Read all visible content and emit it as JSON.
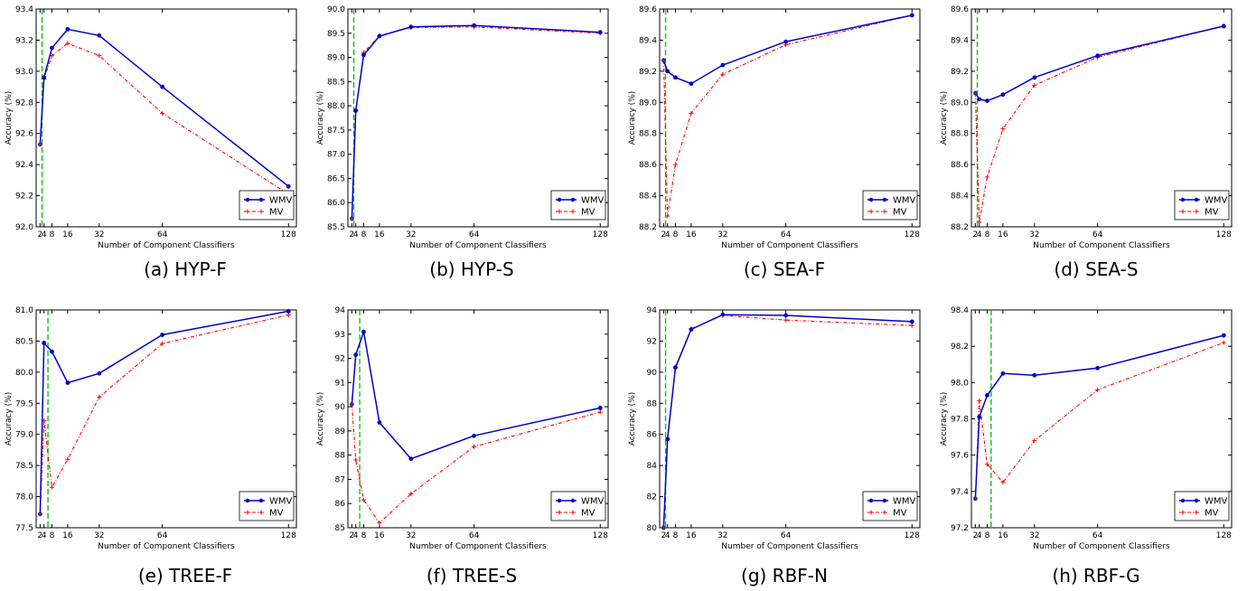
{
  "figure": {
    "legend_entries": [
      "WMV",
      "MV"
    ],
    "series_colors": {
      "WMV": "#0000cc",
      "MV": "#ff0000",
      "marker": "#4b2a8a",
      "threshold": "#00bb00"
    }
  },
  "chart_data": [
    {
      "type": "line",
      "caption": "(a) HYP-F",
      "xlabel": "Number of Component Classifiers",
      "ylabel": "Accuracy (%)",
      "x_ticks": [
        2,
        4,
        8,
        16,
        32,
        64,
        128
      ],
      "x_tick_labels": [
        "2",
        "4",
        "8",
        "16",
        "32",
        "64",
        "128"
      ],
      "xlim": [
        0,
        132
      ],
      "ylim": [
        92.0,
        93.4
      ],
      "y_ticks": [
        92.0,
        92.2,
        92.4,
        92.6,
        92.8,
        93.0,
        93.2,
        93.4
      ],
      "y_tick_labels": [
        "92.0",
        "92.2",
        "92.4",
        "92.6",
        "92.8",
        "93.0",
        "93.2",
        "93.4"
      ],
      "threshold_x": 3,
      "legend_position": "lower-right",
      "x": [
        2,
        4,
        8,
        16,
        32,
        64,
        128
      ],
      "series": [
        {
          "name": "WMV",
          "values": [
            92.53,
            92.96,
            93.15,
            93.27,
            93.23,
            92.9,
            92.26
          ]
        },
        {
          "name": "MV",
          "values": [
            92.53,
            92.95,
            93.1,
            93.18,
            93.1,
            92.73,
            92.21
          ]
        }
      ]
    },
    {
      "type": "line",
      "caption": "(b) HYP-S",
      "xlabel": "Number of Component Classifiers",
      "ylabel": "Accuracy (%)",
      "x_ticks": [
        2,
        4,
        8,
        16,
        32,
        64,
        128
      ],
      "x_tick_labels": [
        "2",
        "4",
        "8",
        "16",
        "32",
        "64",
        "128"
      ],
      "xlim": [
        0,
        132
      ],
      "ylim": [
        85.5,
        90.0
      ],
      "y_ticks": [
        85.5,
        86.0,
        86.5,
        87.0,
        87.5,
        88.0,
        88.5,
        89.0,
        89.5,
        90.0
      ],
      "y_tick_labels": [
        "85.5",
        "86.0",
        "86.5",
        "87.0",
        "87.5",
        "88.0",
        "88.5",
        "89.0",
        "89.5",
        "90.0"
      ],
      "threshold_x": 3,
      "legend_position": "lower-right",
      "x": [
        2,
        4,
        8,
        16,
        32,
        64,
        128
      ],
      "series": [
        {
          "name": "WMV",
          "values": [
            85.67,
            87.9,
            89.05,
            89.44,
            89.63,
            89.66,
            89.52
          ]
        },
        {
          "name": "MV",
          "values": [
            85.67,
            87.9,
            89.1,
            89.45,
            89.62,
            89.63,
            89.5
          ]
        }
      ]
    },
    {
      "type": "line",
      "caption": "(c) SEA-F",
      "xlabel": "Number of Component Classifiers",
      "ylabel": "Accuracy (%)",
      "x_ticks": [
        2,
        4,
        8,
        16,
        32,
        64,
        128
      ],
      "x_tick_labels": [
        "2",
        "4",
        "8",
        "16",
        "32",
        "64",
        "128"
      ],
      "xlim": [
        0,
        132
      ],
      "ylim": [
        88.2,
        89.6
      ],
      "y_ticks": [
        88.2,
        88.4,
        88.6,
        88.8,
        89.0,
        89.2,
        89.4,
        89.6
      ],
      "y_tick_labels": [
        "88.2",
        "88.4",
        "88.6",
        "88.8",
        "89.0",
        "89.2",
        "89.4",
        "89.6"
      ],
      "threshold_x": 3,
      "legend_position": "lower-right",
      "x": [
        2,
        4,
        8,
        16,
        32,
        64,
        128
      ],
      "series": [
        {
          "name": "WMV",
          "values": [
            89.27,
            89.2,
            89.16,
            89.12,
            89.24,
            89.39,
            89.56
          ]
        },
        {
          "name": "MV",
          "values": [
            89.27,
            88.27,
            88.6,
            88.93,
            89.18,
            89.37,
            89.56
          ]
        }
      ]
    },
    {
      "type": "line",
      "caption": "(d) SEA-S",
      "xlabel": "Number of Component Classifiers",
      "ylabel": "Accuracy (%)",
      "x_ticks": [
        2,
        4,
        8,
        16,
        32,
        64,
        128
      ],
      "x_tick_labels": [
        "2",
        "4",
        "8",
        "16",
        "32",
        "64",
        "128"
      ],
      "xlim": [
        0,
        132
      ],
      "ylim": [
        88.2,
        89.6
      ],
      "y_ticks": [
        88.2,
        88.4,
        88.6,
        88.8,
        89.0,
        89.2,
        89.4,
        89.6
      ],
      "y_tick_labels": [
        "88.2",
        "88.4",
        "88.6",
        "88.8",
        "89.0",
        "89.2",
        "89.4",
        "89.6"
      ],
      "threshold_x": 3,
      "legend_position": "lower-right",
      "x": [
        2,
        4,
        8,
        16,
        32,
        64,
        128
      ],
      "series": [
        {
          "name": "WMV",
          "values": [
            89.06,
            89.02,
            89.01,
            89.05,
            89.16,
            89.3,
            89.49
          ]
        },
        {
          "name": "MV",
          "values": [
            89.06,
            88.23,
            88.52,
            88.83,
            89.11,
            89.29,
            89.49
          ]
        }
      ]
    },
    {
      "type": "line",
      "caption": "(e) TREE-F",
      "xlabel": "Number of Component Classifiers",
      "ylabel": "Accuracy (%)",
      "x_ticks": [
        2,
        4,
        8,
        16,
        32,
        64,
        128
      ],
      "x_tick_labels": [
        "2",
        "4",
        "8",
        "16",
        "32",
        "64",
        "128"
      ],
      "xlim": [
        0,
        132
      ],
      "ylim": [
        77.5,
        81.0
      ],
      "y_ticks": [
        77.5,
        78.0,
        78.5,
        79.0,
        79.5,
        80.0,
        80.5,
        81.0
      ],
      "y_tick_labels": [
        "77.5",
        "78.0",
        "78.5",
        "79.0",
        "79.5",
        "80.0",
        "80.5",
        "81.0"
      ],
      "threshold_x": 6,
      "legend_position": "lower-right",
      "x": [
        2,
        4,
        8,
        16,
        32,
        64,
        128
      ],
      "series": [
        {
          "name": "WMV",
          "values": [
            77.72,
            80.47,
            80.33,
            79.83,
            79.98,
            80.6,
            80.98
          ]
        },
        {
          "name": "MV",
          "values": [
            77.72,
            79.22,
            78.15,
            78.6,
            79.6,
            80.46,
            80.92
          ]
        }
      ]
    },
    {
      "type": "line",
      "caption": "(f) TREE-S",
      "xlabel": "Number of Component Classifiers",
      "ylabel": "Accuracy (%)",
      "x_ticks": [
        2,
        4,
        8,
        16,
        32,
        64,
        128
      ],
      "x_tick_labels": [
        "2",
        "4",
        "8",
        "16",
        "32",
        "64",
        "128"
      ],
      "xlim": [
        0,
        132
      ],
      "ylim": [
        85,
        94
      ],
      "y_ticks": [
        85,
        86,
        87,
        88,
        89,
        90,
        91,
        92,
        93,
        94
      ],
      "y_tick_labels": [
        "85",
        "86",
        "87",
        "88",
        "89",
        "90",
        "91",
        "92",
        "93",
        "94"
      ],
      "threshold_x": 6,
      "legend_position": "lower-right",
      "x": [
        2,
        4,
        8,
        16,
        32,
        64,
        128
      ],
      "series": [
        {
          "name": "WMV",
          "values": [
            90.1,
            92.15,
            93.1,
            89.35,
            87.85,
            88.8,
            89.95
          ]
        },
        {
          "name": "MV",
          "values": [
            90.1,
            87.8,
            86.15,
            85.2,
            86.4,
            88.35,
            89.78
          ]
        }
      ]
    },
    {
      "type": "line",
      "caption": "(g) RBF-N",
      "xlabel": "Number of Component Classifiers",
      "ylabel": "Accuracy (%)",
      "x_ticks": [
        2,
        4,
        8,
        16,
        32,
        64,
        128
      ],
      "x_tick_labels": [
        "2",
        "4",
        "8",
        "16",
        "32",
        "64",
        "128"
      ],
      "xlim": [
        0,
        132
      ],
      "ylim": [
        80,
        94
      ],
      "y_ticks": [
        80,
        82,
        84,
        86,
        88,
        90,
        92,
        94
      ],
      "y_tick_labels": [
        "80",
        "82",
        "84",
        "86",
        "88",
        "90",
        "92",
        "94"
      ],
      "threshold_x": 3,
      "legend_position": "lower-right",
      "x": [
        2,
        4,
        8,
        16,
        32,
        64,
        128
      ],
      "series": [
        {
          "name": "WMV",
          "values": [
            80.0,
            85.7,
            90.3,
            92.75,
            93.7,
            93.65,
            93.25
          ]
        },
        {
          "name": "MV",
          "values": [
            80.0,
            85.7,
            90.35,
            92.8,
            93.65,
            93.35,
            93.0
          ]
        }
      ]
    },
    {
      "type": "line",
      "caption": "(h) RBF-G",
      "xlabel": "Number of Component Classifiers",
      "ylabel": "Accuracy (%)",
      "x_ticks": [
        2,
        4,
        8,
        16,
        32,
        64,
        128
      ],
      "x_tick_labels": [
        "2",
        "4",
        "8",
        "16",
        "32",
        "64",
        "128"
      ],
      "xlim": [
        0,
        132
      ],
      "ylim": [
        97.2,
        98.4
      ],
      "y_ticks": [
        97.2,
        97.4,
        97.6,
        97.8,
        98.0,
        98.2,
        98.4
      ],
      "y_tick_labels": [
        "97.2",
        "97.4",
        "97.6",
        "97.8",
        "98.0",
        "98.2",
        "98.4"
      ],
      "threshold_x": 10,
      "legend_position": "lower-right",
      "x": [
        2,
        4,
        8,
        16,
        32,
        64,
        128
      ],
      "series": [
        {
          "name": "WMV",
          "values": [
            97.36,
            97.81,
            97.93,
            98.05,
            98.04,
            98.08,
            98.26
          ]
        },
        {
          "name": "MV",
          "values": [
            97.36,
            97.9,
            97.55,
            97.45,
            97.68,
            97.96,
            98.22
          ]
        }
      ]
    }
  ]
}
